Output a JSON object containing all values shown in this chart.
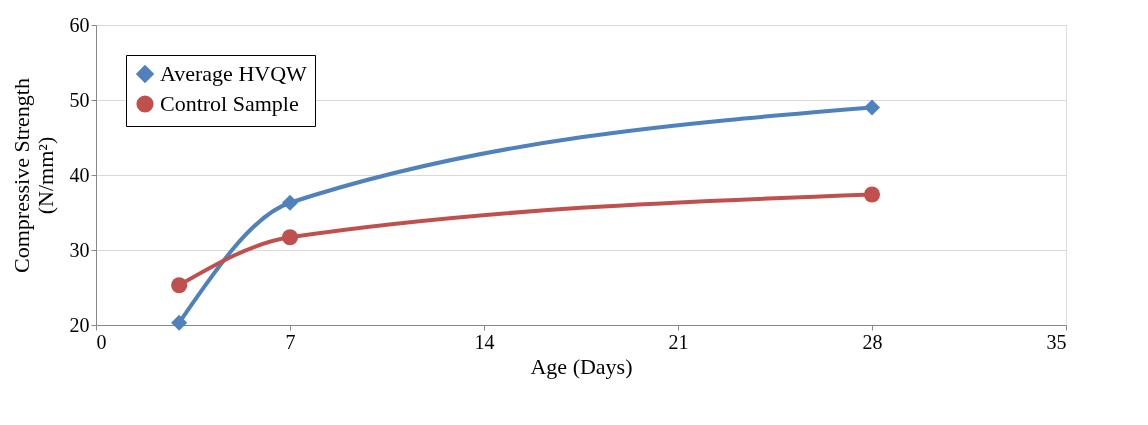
{
  "chart_data": {
    "type": "line",
    "xlabel": "Age (Days)",
    "ylabel": "Compressive Strength\n(N/mm²)",
    "x": [
      3,
      7,
      28
    ],
    "xlim": [
      0,
      35
    ],
    "xticks": [
      0,
      7,
      14,
      21,
      28,
      35
    ],
    "ylim": [
      20,
      60
    ],
    "yticks": [
      20,
      30,
      40,
      50,
      60
    ],
    "grid": "y",
    "legend": "top left",
    "line_style": "solid",
    "series": [
      {
        "name": "Average HVQW",
        "color": "#4f81bd",
        "marker": "diamond",
        "values": [
          20.3,
          36.3,
          49.0
        ]
      },
      {
        "name": "Control Sample",
        "color": "#c0504d",
        "marker": "circle",
        "values": [
          25.3,
          31.7,
          37.4
        ]
      }
    ]
  }
}
